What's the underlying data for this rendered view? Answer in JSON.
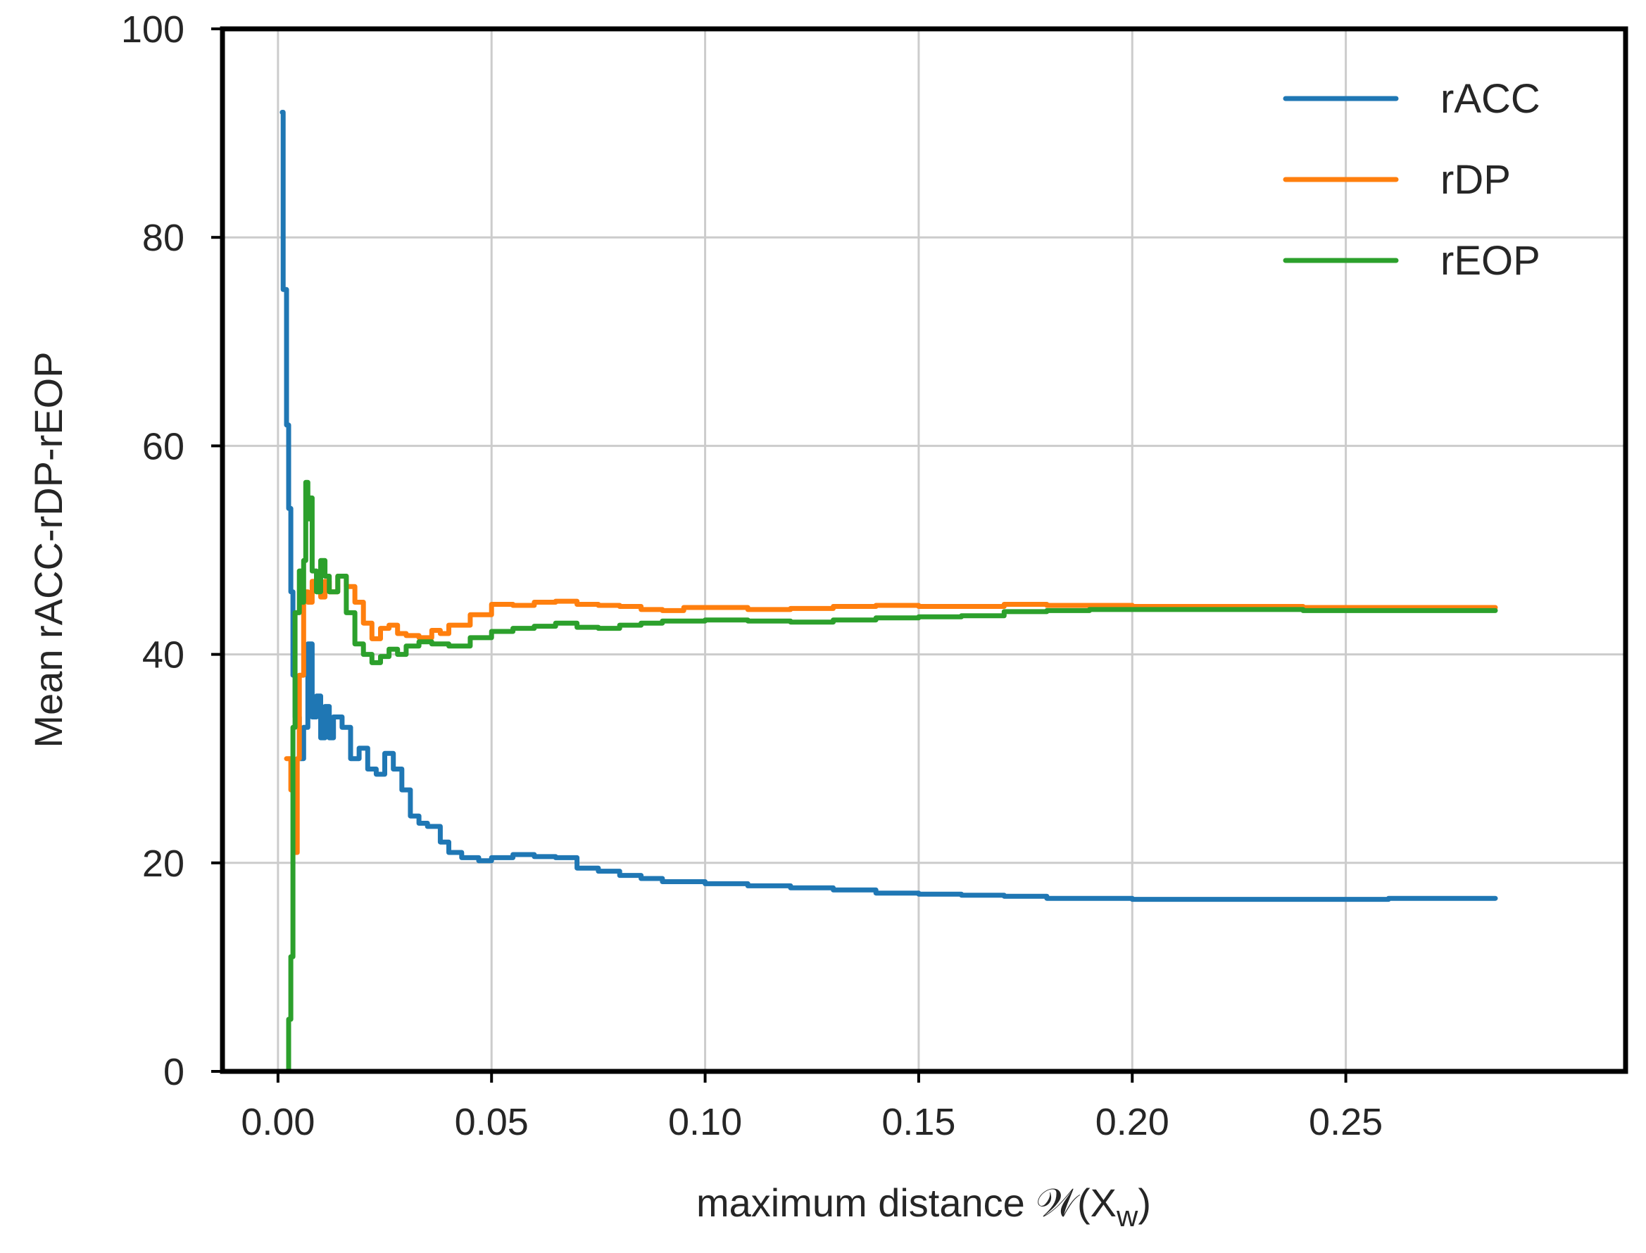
{
  "chart_data": {
    "type": "line",
    "title": "",
    "xlabel": "maximum distance 𝒲(X",
    "xlabel_sub": "w",
    "xlabel_close": ")",
    "ylabel": "Mean rACC-rDP-rEOP",
    "xlim": [
      -0.013,
      0.3155
    ],
    "ylim": [
      0,
      100
    ],
    "x_ticks": [
      0.0,
      0.05,
      0.1,
      0.15,
      0.2,
      0.25
    ],
    "x_tick_labels": [
      "0.00",
      "0.05",
      "0.10",
      "0.15",
      "0.20",
      "0.25"
    ],
    "y_ticks": [
      0,
      20,
      40,
      60,
      80,
      100
    ],
    "y_tick_labels": [
      "0",
      "20",
      "40",
      "60",
      "80",
      "100"
    ],
    "grid": true,
    "legend_position": "top-right",
    "series": [
      {
        "name": "rACC",
        "color": "#1f77b4",
        "points": [
          [
            0.001,
            92
          ],
          [
            0.0012,
            75
          ],
          [
            0.002,
            62
          ],
          [
            0.0025,
            54
          ],
          [
            0.003,
            46
          ],
          [
            0.0035,
            38
          ],
          [
            0.004,
            34
          ],
          [
            0.005,
            30
          ],
          [
            0.006,
            33
          ],
          [
            0.007,
            41
          ],
          [
            0.008,
            34
          ],
          [
            0.009,
            36
          ],
          [
            0.01,
            32
          ],
          [
            0.011,
            35
          ],
          [
            0.012,
            32
          ],
          [
            0.013,
            34
          ],
          [
            0.015,
            33
          ],
          [
            0.017,
            30
          ],
          [
            0.019,
            31
          ],
          [
            0.021,
            29
          ],
          [
            0.023,
            28.5
          ],
          [
            0.025,
            30.5
          ],
          [
            0.027,
            29
          ],
          [
            0.029,
            27
          ],
          [
            0.031,
            24.5
          ],
          [
            0.033,
            23.8
          ],
          [
            0.035,
            23.5
          ],
          [
            0.038,
            22
          ],
          [
            0.04,
            21
          ],
          [
            0.043,
            20.5
          ],
          [
            0.047,
            20.2
          ],
          [
            0.05,
            20.5
          ],
          [
            0.055,
            20.8
          ],
          [
            0.06,
            20.6
          ],
          [
            0.065,
            20.5
          ],
          [
            0.07,
            19.5
          ],
          [
            0.075,
            19.2
          ],
          [
            0.08,
            18.8
          ],
          [
            0.085,
            18.5
          ],
          [
            0.09,
            18.2
          ],
          [
            0.1,
            18.0
          ],
          [
            0.11,
            17.8
          ],
          [
            0.12,
            17.6
          ],
          [
            0.13,
            17.4
          ],
          [
            0.14,
            17.1
          ],
          [
            0.15,
            17.0
          ],
          [
            0.16,
            16.9
          ],
          [
            0.17,
            16.8
          ],
          [
            0.18,
            16.6
          ],
          [
            0.19,
            16.6
          ],
          [
            0.2,
            16.5
          ],
          [
            0.22,
            16.5
          ],
          [
            0.24,
            16.5
          ],
          [
            0.26,
            16.6
          ],
          [
            0.285,
            16.6
          ]
        ]
      },
      {
        "name": "rDP",
        "color": "#ff7f0e",
        "points": [
          [
            0.002,
            30
          ],
          [
            0.003,
            27
          ],
          [
            0.004,
            21
          ],
          [
            0.0045,
            30
          ],
          [
            0.005,
            38
          ],
          [
            0.006,
            46
          ],
          [
            0.007,
            45
          ],
          [
            0.008,
            47
          ],
          [
            0.009,
            46
          ],
          [
            0.01,
            45.5
          ],
          [
            0.011,
            47
          ],
          [
            0.012,
            46
          ],
          [
            0.014,
            47.5
          ],
          [
            0.016,
            46.5
          ],
          [
            0.018,
            45
          ],
          [
            0.02,
            43
          ],
          [
            0.022,
            41.5
          ],
          [
            0.024,
            42.5
          ],
          [
            0.026,
            42.8
          ],
          [
            0.028,
            42
          ],
          [
            0.03,
            41.8
          ],
          [
            0.033,
            41.6
          ],
          [
            0.036,
            42.3
          ],
          [
            0.038,
            42.0
          ],
          [
            0.04,
            42.8
          ],
          [
            0.045,
            43.8
          ],
          [
            0.05,
            44.8
          ],
          [
            0.055,
            44.7
          ],
          [
            0.06,
            45.0
          ],
          [
            0.065,
            45.1
          ],
          [
            0.07,
            44.8
          ],
          [
            0.075,
            44.7
          ],
          [
            0.08,
            44.6
          ],
          [
            0.085,
            44.3
          ],
          [
            0.09,
            44.2
          ],
          [
            0.095,
            44.5
          ],
          [
            0.1,
            44.5
          ],
          [
            0.11,
            44.3
          ],
          [
            0.12,
            44.4
          ],
          [
            0.13,
            44.6
          ],
          [
            0.14,
            44.7
          ],
          [
            0.15,
            44.6
          ],
          [
            0.16,
            44.6
          ],
          [
            0.17,
            44.8
          ],
          [
            0.18,
            44.7
          ],
          [
            0.19,
            44.7
          ],
          [
            0.2,
            44.6
          ],
          [
            0.22,
            44.6
          ],
          [
            0.24,
            44.5
          ],
          [
            0.26,
            44.5
          ],
          [
            0.285,
            44.5
          ]
        ]
      },
      {
        "name": "rEOP",
        "color": "#2ca02c",
        "points": [
          [
            0.002,
            0
          ],
          [
            0.0025,
            5
          ],
          [
            0.003,
            11
          ],
          [
            0.0035,
            33
          ],
          [
            0.004,
            44
          ],
          [
            0.005,
            48
          ],
          [
            0.0055,
            45
          ],
          [
            0.006,
            49
          ],
          [
            0.0065,
            56.5
          ],
          [
            0.007,
            53
          ],
          [
            0.0075,
            55
          ],
          [
            0.008,
            48
          ],
          [
            0.009,
            46
          ],
          [
            0.01,
            49
          ],
          [
            0.011,
            47.5
          ],
          [
            0.012,
            46
          ],
          [
            0.014,
            47.5
          ],
          [
            0.016,
            44
          ],
          [
            0.018,
            41
          ],
          [
            0.02,
            40
          ],
          [
            0.022,
            39.2
          ],
          [
            0.024,
            39.8
          ],
          [
            0.026,
            40.5
          ],
          [
            0.028,
            40
          ],
          [
            0.03,
            40.8
          ],
          [
            0.033,
            41.2
          ],
          [
            0.036,
            41.0
          ],
          [
            0.04,
            40.8
          ],
          [
            0.045,
            41.6
          ],
          [
            0.05,
            42.2
          ],
          [
            0.055,
            42.5
          ],
          [
            0.06,
            42.7
          ],
          [
            0.065,
            43.0
          ],
          [
            0.07,
            42.6
          ],
          [
            0.075,
            42.5
          ],
          [
            0.08,
            42.8
          ],
          [
            0.085,
            43.0
          ],
          [
            0.09,
            43.2
          ],
          [
            0.1,
            43.3
          ],
          [
            0.11,
            43.2
          ],
          [
            0.12,
            43.1
          ],
          [
            0.13,
            43.3
          ],
          [
            0.14,
            43.5
          ],
          [
            0.15,
            43.6
          ],
          [
            0.16,
            43.7
          ],
          [
            0.17,
            44.1
          ],
          [
            0.18,
            44.2
          ],
          [
            0.19,
            44.3
          ],
          [
            0.2,
            44.3
          ],
          [
            0.22,
            44.3
          ],
          [
            0.24,
            44.2
          ],
          [
            0.26,
            44.2
          ],
          [
            0.285,
            44.2
          ]
        ]
      }
    ]
  }
}
